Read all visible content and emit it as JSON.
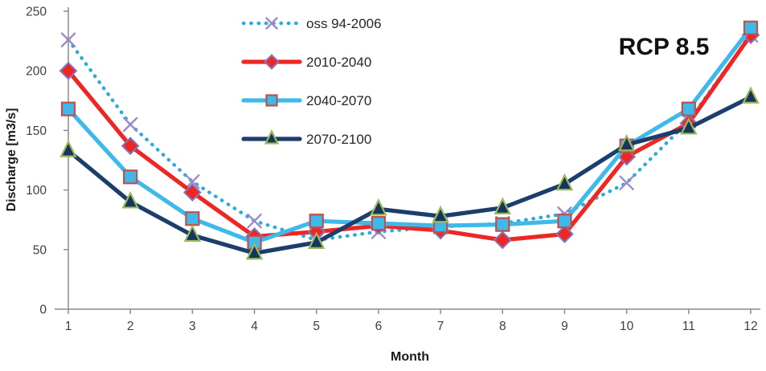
{
  "chart_data": {
    "type": "line",
    "title": "",
    "annotation": "RCP 8.5",
    "xlabel": "Month",
    "ylabel": "Discharge [m3/s]",
    "x": [
      1,
      2,
      3,
      4,
      5,
      6,
      7,
      8,
      9,
      10,
      11,
      12
    ],
    "xtick_labels": [
      "1",
      "2",
      "3",
      "4",
      "5",
      "6",
      "7",
      "8",
      "9",
      "10",
      "11",
      "12"
    ],
    "yticks": [
      0,
      50,
      100,
      150,
      200,
      250
    ],
    "ylim": [
      0,
      250
    ],
    "grid": false,
    "legend_position": "inside-top-left",
    "axis_color": "#8c8c8c",
    "tick_label_color": "#3f3f3f",
    "legend_text_color": "#262626",
    "series": [
      {
        "name": "oss 94-2006",
        "style": "dotted",
        "line_color": "#29abe2",
        "marker": "x",
        "marker_stroke": "#9c8ac9",
        "marker_fill": "none",
        "values": [
          226,
          155,
          107,
          74,
          58,
          65,
          69,
          72,
          80,
          106,
          158,
          230
        ]
      },
      {
        "name": "2010-2040",
        "style": "solid",
        "line_color": "#ee2624",
        "marker": "diamond",
        "marker_stroke": "#8178be",
        "marker_fill": "#ee2624",
        "values": [
          200,
          137,
          98,
          61,
          65,
          70,
          66,
          58,
          63,
          128,
          156,
          230
        ]
      },
      {
        "name": "2040-2070",
        "style": "solid",
        "line_color": "#3fb9e9",
        "marker": "square",
        "marker_stroke": "#c0504d",
        "marker_fill": "#3fb9e9",
        "values": [
          168,
          111,
          76,
          56,
          74,
          72,
          70,
          71,
          74,
          137,
          168,
          236
        ]
      },
      {
        "name": "2070-2100",
        "style": "solid",
        "line_color": "#1c3e6d",
        "marker": "triangle",
        "marker_stroke": "#9bbb59",
        "marker_fill": "#17365d",
        "values": [
          133,
          90,
          62,
          47,
          56,
          84,
          78,
          85,
          105,
          138,
          152,
          178
        ]
      }
    ]
  }
}
